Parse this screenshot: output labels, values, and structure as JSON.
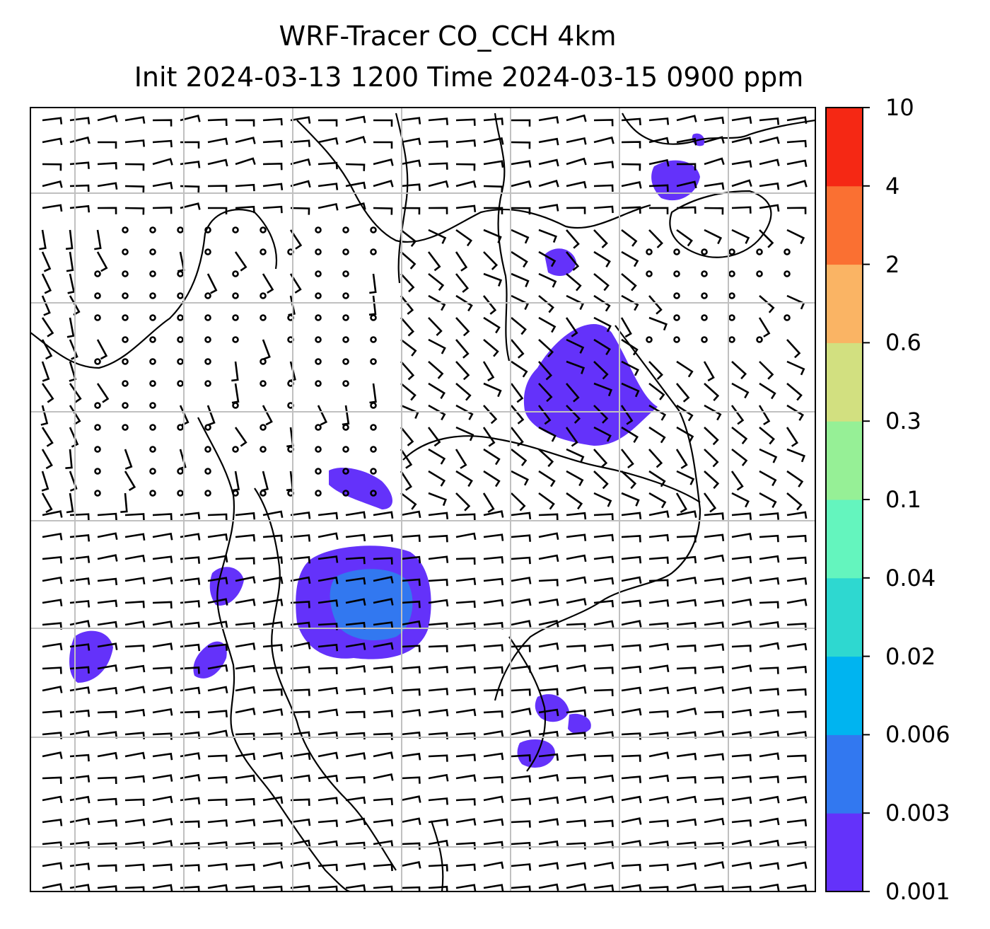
{
  "title": {
    "line1": "WRF-Tracer CO_CCH 4km",
    "line2": "Init 2024-03-13 1200 Time 2024-03-15 0900 ppm"
  },
  "colorbar": {
    "levels": [
      "0.001",
      "0.003",
      "0.006",
      "0.02",
      "0.04",
      "0.1",
      "0.3",
      "0.6",
      "2",
      "4",
      "10"
    ],
    "colors": [
      "#6432FA",
      "#3278F0",
      "#00B4F0",
      "#2ED8D0",
      "#64F5BE",
      "#96F096",
      "#D2E080",
      "#FAB464",
      "#FA7032",
      "#F52814"
    ]
  },
  "map": {
    "background": "#ffffff",
    "gridline_color": "#c0c0c0",
    "coastline_color": "#000000",
    "content": "CO_CCH tracer concentration plumes with wind barbs and coastlines"
  }
}
